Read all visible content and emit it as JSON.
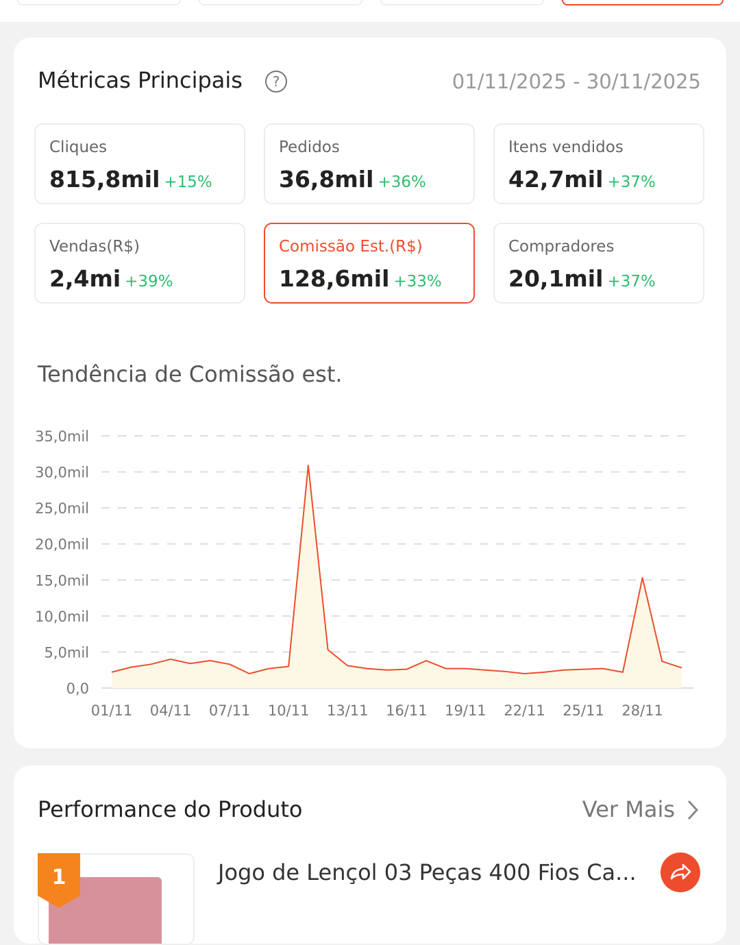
{
  "metrics": {
    "title": "Métricas Principais",
    "date_range": "01/11/2025 - 30/11/2025",
    "cards": [
      {
        "label": "Cliques",
        "value": "815,8mil",
        "change": "+15%"
      },
      {
        "label": "Pedidos",
        "value": "36,8mil",
        "change": "+36%"
      },
      {
        "label": "Itens vendidos",
        "value": "42,7mil",
        "change": "+37%"
      },
      {
        "label": "Vendas(R$)",
        "value": "2,4mi",
        "change": "+39%"
      },
      {
        "label": "Comissão Est.(R$)",
        "value": "128,6mil",
        "change": "+33%",
        "active": true
      },
      {
        "label": "Compradores",
        "value": "20,1mil",
        "change": "+37%"
      }
    ]
  },
  "chart_data": {
    "type": "line",
    "title": "Tendência de Comissão est.",
    "categories": [
      "01/11",
      null,
      null,
      "04/11",
      null,
      null,
      "07/11",
      null,
      null,
      "10/11",
      null,
      null,
      "13/11",
      null,
      null,
      "16/11",
      null,
      null,
      "19/11",
      null,
      null,
      "22/11",
      null,
      null,
      "25/11",
      null,
      null,
      "28/11",
      null,
      null
    ],
    "values": [
      2200,
      2900,
      3300,
      4000,
      3400,
      3800,
      3300,
      2000,
      2700,
      3000,
      30900,
      5300,
      3100,
      2700,
      2500,
      2600,
      3800,
      2700,
      2700,
      2500,
      2300,
      2000,
      2200,
      2500,
      2600,
      2700,
      2200,
      15300,
      3700,
      2800
    ],
    "color": "#ee4d2d",
    "area_color": "#fdf8e6",
    "ylim": [
      0,
      35000
    ],
    "yticks": [
      {
        "value": 0,
        "label": "0,0"
      },
      {
        "value": 5000,
        "label": "5,0mil"
      },
      {
        "value": 10000,
        "label": "10,0mil"
      },
      {
        "value": 15000,
        "label": "15,0mil"
      },
      {
        "value": 20000,
        "label": "20,0mil"
      },
      {
        "value": 25000,
        "label": "25,0mil"
      },
      {
        "value": 30000,
        "label": "30,0mil"
      },
      {
        "value": 35000,
        "label": "35,0mil"
      }
    ],
    "grid": true
  },
  "products": {
    "title": "Performance do Produto",
    "more": "Ver Mais",
    "items": [
      {
        "rank": "1",
        "name": "Jogo de Lençol 03 Peças 400 Fios Ca..."
      }
    ]
  }
}
